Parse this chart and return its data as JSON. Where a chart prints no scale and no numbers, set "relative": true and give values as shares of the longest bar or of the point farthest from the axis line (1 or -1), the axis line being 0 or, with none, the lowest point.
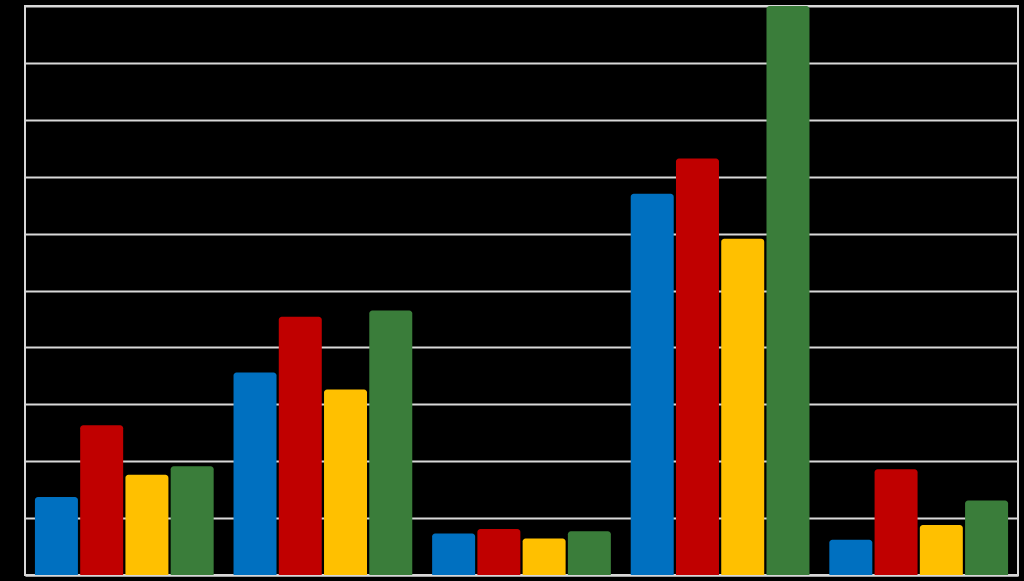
{
  "chart_data": {
    "type": "bar",
    "relative": true,
    "categories": [
      null,
      null,
      null,
      null,
      null
    ],
    "grid": "y",
    "legend": false,
    "series": [
      {
        "color": "#0070c0",
        "values": [
          0.137,
          0.356,
          0.073,
          0.67,
          0.062
        ]
      },
      {
        "color": "#c00000",
        "values": [
          0.263,
          0.454,
          0.081,
          0.732,
          0.186
        ]
      },
      {
        "color": "#ffc000",
        "values": [
          0.176,
          0.326,
          0.064,
          0.591,
          0.088
        ]
      },
      {
        "color": "#3a7d3a",
        "values": [
          0.191,
          0.465,
          0.077,
          1,
          0.131
        ]
      }
    ]
  }
}
